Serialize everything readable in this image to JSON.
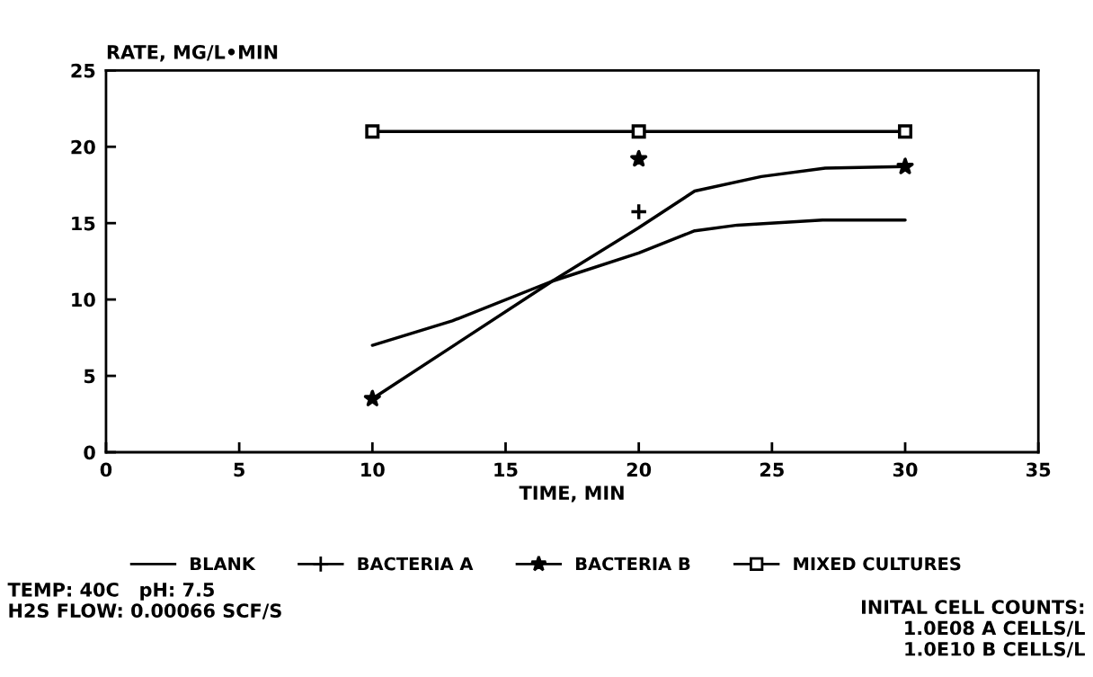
{
  "chart_data": {
    "type": "line",
    "ylabel": "RATE, MG/L•MIN",
    "xlabel": "TIME, MIN",
    "xlim": [
      0,
      35
    ],
    "xticks": [
      0,
      5,
      10,
      15,
      20,
      25,
      30,
      35
    ],
    "ylim": [
      0,
      25
    ],
    "yticks": [
      0,
      5,
      10,
      15,
      20,
      25
    ],
    "grid": false,
    "legend": "bottom",
    "series": [
      {
        "name": "BLANK",
        "marker": "none",
        "color": "#000000",
        "x": [
          10,
          13,
          16.75,
          20,
          22.1,
          23.7,
          26.9,
          30
        ],
        "values": [
          7.0,
          8.6,
          11.2,
          13.05,
          14.5,
          14.87,
          15.2,
          15.2
        ]
      },
      {
        "name": "BACTERIA A",
        "type": "scatter",
        "marker": "cross",
        "color": "#000000",
        "x": [
          20
        ],
        "values": [
          15.75
        ]
      },
      {
        "marker": "none",
        "color": "#000000",
        "x": [
          10,
          16.75,
          20,
          22.1,
          24.6,
          27,
          30
        ],
        "values": [
          3.5,
          11.2,
          14.7,
          17.1,
          18.05,
          18.6,
          18.7
        ]
      },
      {
        "name": "BACTERIA B",
        "type": "scatter",
        "marker": "star",
        "color": "#000000",
        "x": [
          10,
          20,
          30
        ],
        "values": [
          3.5,
          19.2,
          18.7
        ]
      },
      {
        "name": "MIXED CULTURES",
        "marker": "square",
        "color": "#000000",
        "x": [
          10,
          20,
          30
        ],
        "values": [
          21,
          21,
          21
        ]
      }
    ],
    "annotations": [
      "TEMP: 40C   pH: 7.5\nH2S FLOW: 0.00066 SCF/S",
      "INITAL CELL COUNTS:\n1.0E08 A CELLS/L\n1.0E10 B CELLS/L"
    ]
  }
}
